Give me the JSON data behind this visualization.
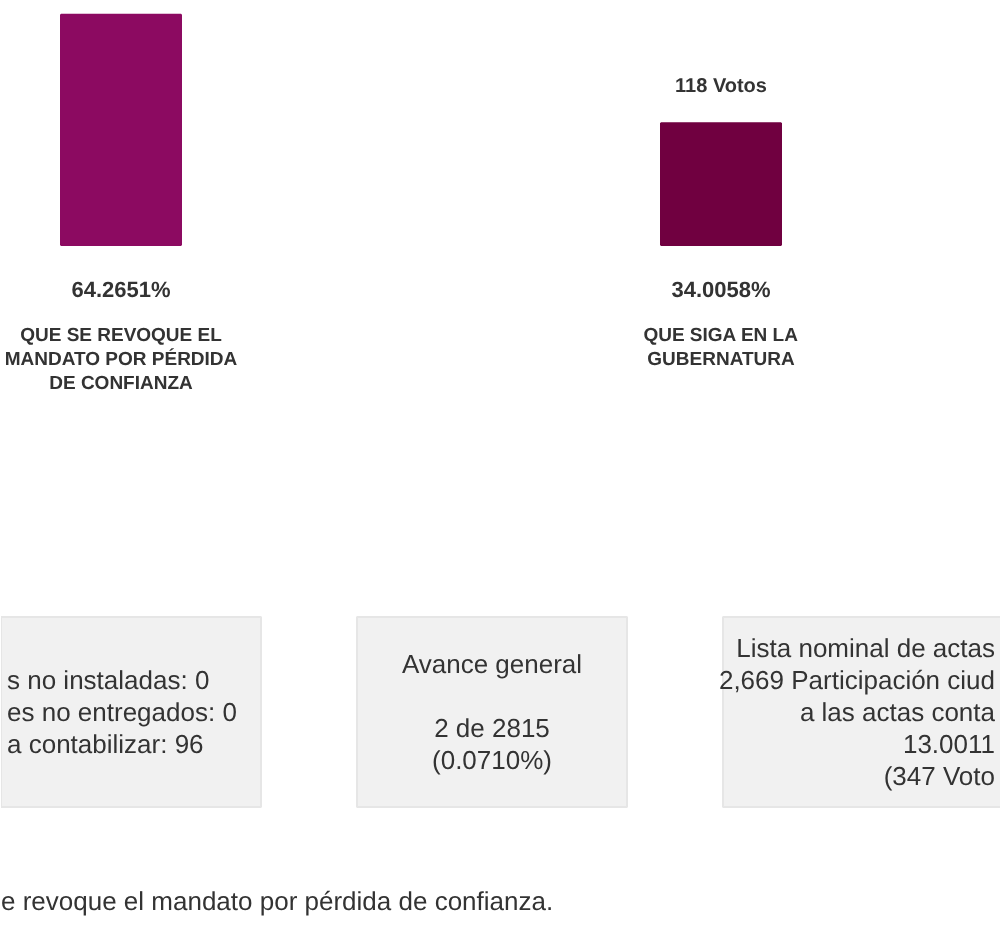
{
  "chart_data": {
    "type": "bar",
    "categories": [
      "QUE SE REVOQUE EL MANDATO POR PÉRDIDA DE CONFIANZA",
      "QUE SIGA EN LA GUBERNATURA"
    ],
    "values": [
      64.2651,
      34.0058
    ],
    "colors": [
      "#8c0a61",
      "#700040"
    ],
    "value_labels": [
      "64.2651%",
      "34.0058%"
    ],
    "annotations": [
      "118 Votos",
      "s no instaladas: 0\nes no entregados: 0\na contabilizar: 96",
      "Avance general\n\n2 de 2815\n(0.0710%)",
      "Lista nominal de actas\n2,669 Participación ciud\na las actas conta\n13.0011\n(347 Voto",
      "e revoque el mandato por pérdida de confianza."
    ]
  }
}
